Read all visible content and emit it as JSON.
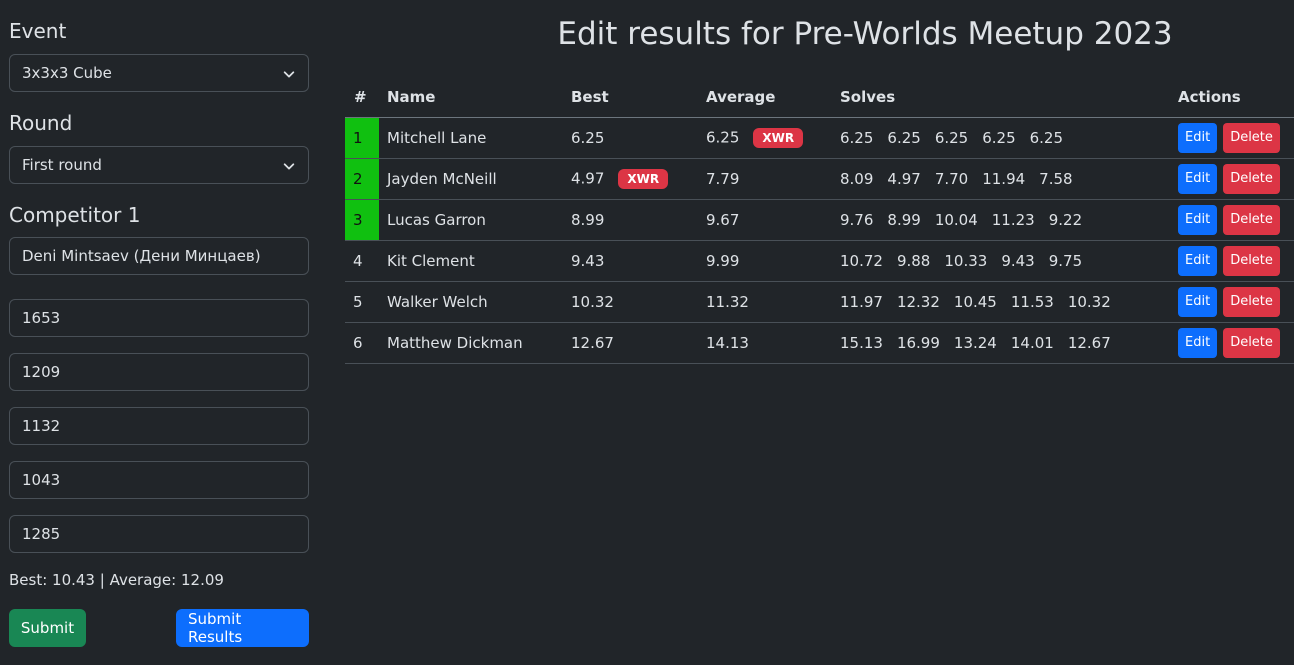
{
  "sidebar": {
    "event_label": "Event",
    "event_value": "3x3x3 Cube",
    "round_label": "Round",
    "round_value": "First round",
    "competitor_label": "Competitor 1",
    "competitor_value": "Deni Mintsaev (Дени Минцаев)",
    "attempts": [
      "1653",
      "1209",
      "1132",
      "1043",
      "1285"
    ],
    "totals": "Best: 10.43 | Average: 12.09",
    "submit_label": "Submit",
    "submit_results_label": "Submit Results"
  },
  "main": {
    "title": "Edit results for Pre-Worlds Meetup 2023",
    "headers": [
      "#",
      "Name",
      "Best",
      "Average",
      "Solves",
      "Actions"
    ],
    "rows": [
      {
        "rank": "1",
        "name": "Mitchell Lane",
        "best": "6.25",
        "best_badge": "",
        "average": "6.25",
        "average_badge": "XWR",
        "solves": [
          "6.25",
          "6.25",
          "6.25",
          "6.25",
          "6.25"
        ]
      },
      {
        "rank": "2",
        "name": "Jayden McNeill",
        "best": "4.97",
        "best_badge": "XWR",
        "average": "7.79",
        "average_badge": "",
        "solves": [
          "8.09",
          "4.97",
          "7.70",
          "11.94",
          "7.58"
        ]
      },
      {
        "rank": "3",
        "name": "Lucas Garron",
        "best": "8.99",
        "best_badge": "",
        "average": "9.67",
        "average_badge": "",
        "solves": [
          "9.76",
          "8.99",
          "10.04",
          "11.23",
          "9.22"
        ]
      },
      {
        "rank": "4",
        "name": "Kit Clement",
        "best": "9.43",
        "best_badge": "",
        "average": "9.99",
        "average_badge": "",
        "solves": [
          "10.72",
          "9.88",
          "10.33",
          "9.43",
          "9.75"
        ]
      },
      {
        "rank": "5",
        "name": "Walker Welch",
        "best": "10.32",
        "best_badge": "",
        "average": "11.32",
        "average_badge": "",
        "solves": [
          "11.97",
          "12.32",
          "10.45",
          "11.53",
          "10.32"
        ]
      },
      {
        "rank": "6",
        "name": "Matthew Dickman",
        "best": "12.67",
        "best_badge": "",
        "average": "14.13",
        "average_badge": "",
        "solves": [
          "15.13",
          "16.99",
          "13.24",
          "14.01",
          "12.67"
        ]
      }
    ],
    "edit_label": "Edit",
    "delete_label": "Delete"
  },
  "colors": {
    "background": "#212529",
    "podium": "#10c010",
    "badge": "#dc3545",
    "primary": "#0d6efd",
    "success": "#198754"
  }
}
